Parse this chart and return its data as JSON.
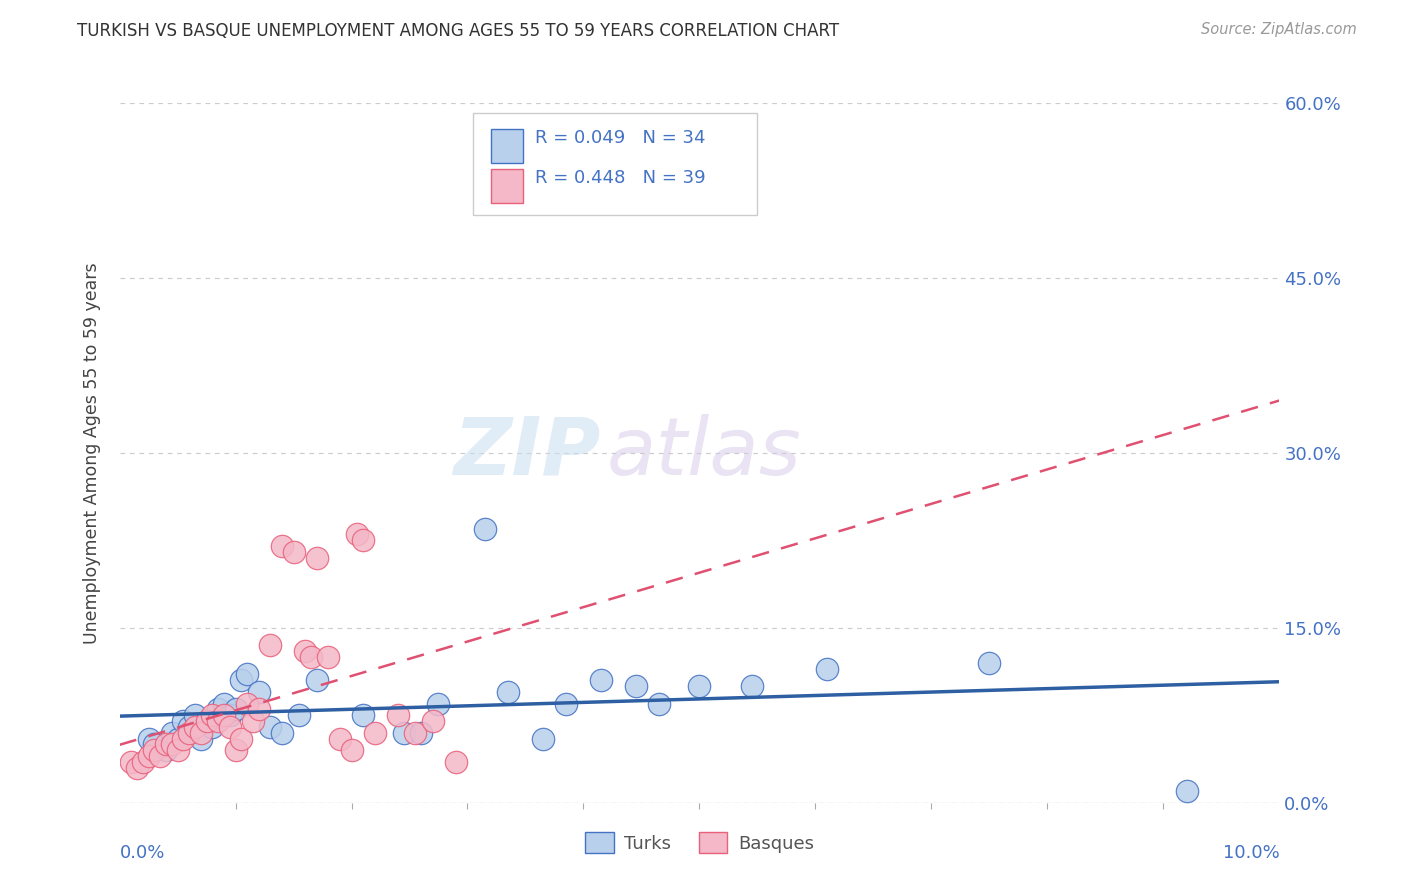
{
  "title": "TURKISH VS BASQUE UNEMPLOYMENT AMONG AGES 55 TO 59 YEARS CORRELATION CHART",
  "source": "Source: ZipAtlas.com",
  "ylabel": "Unemployment Among Ages 55 to 59 years",
  "legend_label_1": "Turks",
  "legend_label_2": "Basques",
  "xlim": [
    0.0,
    10.0
  ],
  "ylim": [
    0.0,
    60.0
  ],
  "yticks": [
    0.0,
    15.0,
    30.0,
    45.0,
    60.0
  ],
  "xtick_minors": [
    1,
    2,
    3,
    4,
    5,
    6,
    7,
    8,
    9
  ],
  "color_turks_fill": "#b8d0eb",
  "color_turks_edge": "#4472c4",
  "color_basques_fill": "#f4b8c8",
  "color_basques_edge": "#e8607a",
  "color_line_turks": "#2e5fa3",
  "color_line_basques": "#e05070",
  "color_axis_blue": "#4472c4",
  "color_title": "#333333",
  "color_grid": "#cccccc",
  "color_source": "#999999",
  "background": "#ffffff",
  "watermark_zip": "ZIP",
  "watermark_atlas": "atlas",
  "turks_x": [
    0.25,
    0.3,
    0.4,
    0.45,
    0.5,
    0.55,
    0.6,
    0.65,
    0.7,
    0.75,
    0.8,
    0.85,
    0.9,
    0.95,
    1.0,
    1.05,
    1.1,
    1.2,
    1.3,
    1.4,
    1.55,
    1.7,
    2.1,
    2.45,
    2.6,
    2.75,
    3.15,
    3.35,
    3.65,
    3.85,
    4.15,
    4.45,
    4.65,
    5.0,
    5.45,
    6.1,
    7.5,
    9.2
  ],
  "turks_y": [
    5.5,
    5.0,
    4.5,
    6.0,
    5.5,
    7.0,
    6.5,
    7.5,
    5.5,
    7.0,
    6.5,
    8.0,
    8.5,
    7.5,
    8.0,
    10.5,
    11.0,
    9.5,
    6.5,
    6.0,
    7.5,
    10.5,
    7.5,
    6.0,
    6.0,
    8.5,
    23.5,
    9.5,
    5.5,
    8.5,
    10.5,
    10.0,
    8.5,
    10.0,
    10.0,
    11.5,
    12.0,
    1.0
  ],
  "basques_x": [
    0.1,
    0.15,
    0.2,
    0.25,
    0.3,
    0.35,
    0.4,
    0.45,
    0.5,
    0.55,
    0.6,
    0.65,
    0.7,
    0.75,
    0.8,
    0.85,
    0.9,
    0.95,
    1.0,
    1.05,
    1.1,
    1.15,
    1.2,
    1.3,
    1.4,
    1.5,
    1.6,
    1.65,
    1.7,
    1.8,
    1.9,
    2.0,
    2.05,
    2.1,
    2.2,
    2.4,
    2.55,
    2.7,
    2.9
  ],
  "basques_y": [
    3.5,
    3.0,
    3.5,
    4.0,
    4.5,
    4.0,
    5.0,
    5.0,
    4.5,
    5.5,
    6.0,
    6.5,
    6.0,
    7.0,
    7.5,
    7.0,
    7.5,
    6.5,
    4.5,
    5.5,
    8.5,
    7.0,
    8.0,
    13.5,
    22.0,
    21.5,
    13.0,
    12.5,
    21.0,
    12.5,
    5.5,
    4.5,
    23.0,
    22.5,
    6.0,
    7.5,
    6.0,
    7.0,
    3.5
  ]
}
